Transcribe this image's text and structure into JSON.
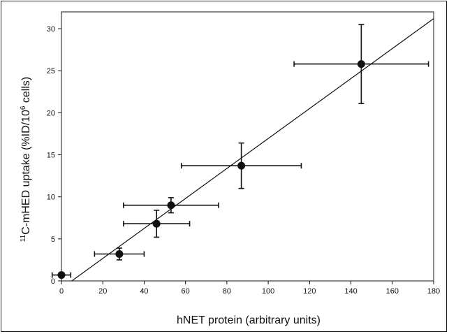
{
  "chart_data": {
    "type": "scatter",
    "xlabel": "hNET protein (arbitrary units)",
    "ylabel_parts": {
      "sup1": "11",
      "text1": "C-mHED uptake (%ID/10",
      "sup2": "6",
      "text2": " cells)"
    },
    "xlim": [
      0,
      180
    ],
    "ylim": [
      0,
      32
    ],
    "x_ticks": [
      0,
      20,
      40,
      60,
      80,
      100,
      120,
      140,
      160,
      180
    ],
    "y_ticks": [
      0,
      5,
      10,
      15,
      20,
      25,
      30
    ],
    "grid": false,
    "points": [
      {
        "x": 0,
        "y": 0.7,
        "x_err": 4.5,
        "y_err": 0.2
      },
      {
        "x": 28,
        "y": 3.2,
        "x_err": 12,
        "y_err": 0.7
      },
      {
        "x": 46,
        "y": 6.8,
        "x_err": 16,
        "y_err": 1.6
      },
      {
        "x": 53,
        "y": 9.0,
        "x_err": 23,
        "y_err": 0.9
      },
      {
        "x": 87,
        "y": 13.7,
        "x_err": 29,
        "y_err": 2.7
      },
      {
        "x": 145,
        "y": 25.8,
        "x_err": 32.5,
        "y_err": 4.7
      }
    ],
    "fit_line": {
      "x": [
        5,
        180
      ],
      "y": [
        0,
        31.2
      ]
    }
  }
}
